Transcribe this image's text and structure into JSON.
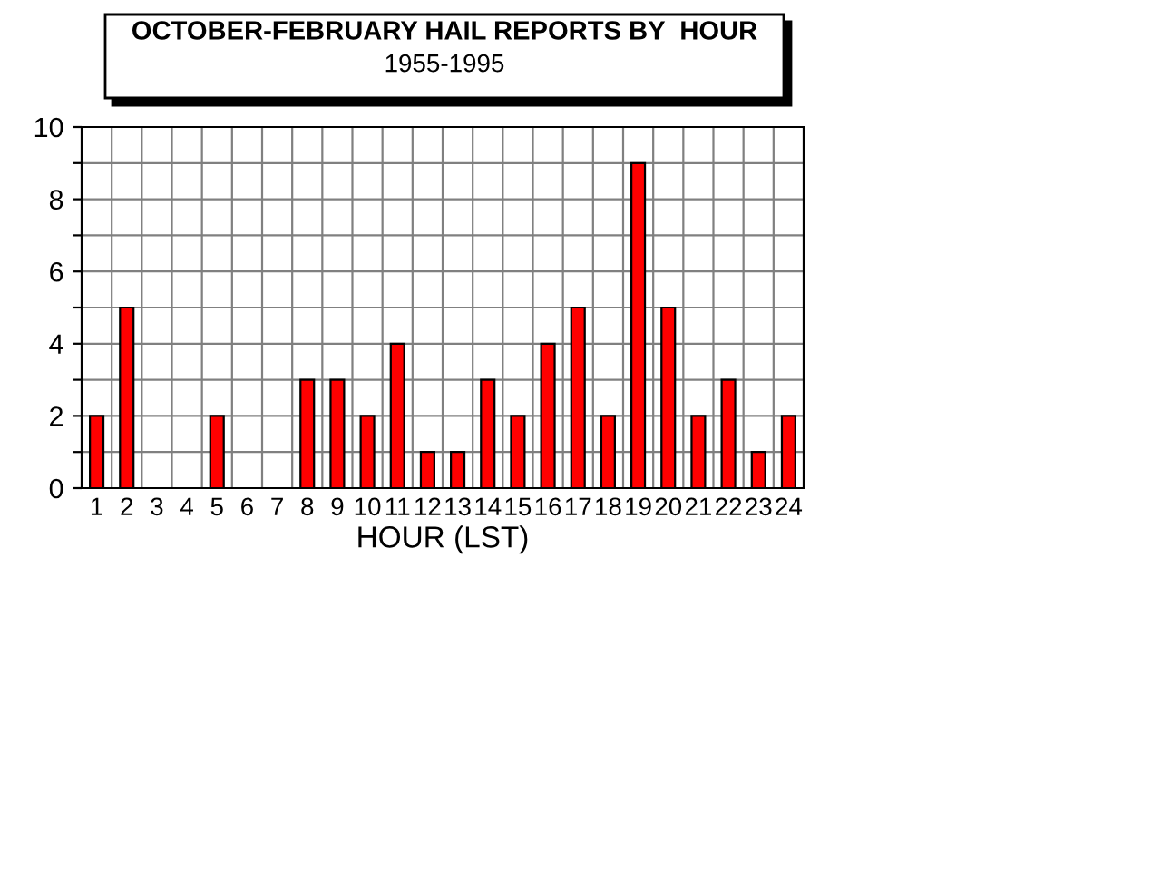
{
  "chart_data": {
    "type": "bar",
    "title": "OCTOBER-FEBRUARY HAIL REPORTS BY  HOUR",
    "subtitle": "1955-1995",
    "xlabel": "HOUR (LST)",
    "categories": [
      "1",
      "2",
      "3",
      "4",
      "5",
      "6",
      "7",
      "8",
      "9",
      "10",
      "11",
      "12",
      "13",
      "14",
      "15",
      "16",
      "17",
      "18",
      "19",
      "20",
      "21",
      "22",
      "23",
      "24"
    ],
    "values": [
      2,
      5,
      0,
      0,
      2,
      0,
      0,
      3,
      3,
      2,
      4,
      1,
      1,
      3,
      2,
      4,
      5,
      2,
      9,
      5,
      2,
      3,
      1,
      2
    ],
    "color": "#ff0000",
    "ylim": [
      0,
      10
    ],
    "yticks": [
      0,
      {
        "value": 1,
        "label": null
      },
      2,
      {
        "value": 3,
        "label": null
      },
      4,
      {
        "value": 5,
        "label": null
      },
      6,
      {
        "value": 7,
        "label": null
      },
      8,
      {
        "value": 9,
        "label": null
      },
      10
    ],
    "grid": true
  }
}
